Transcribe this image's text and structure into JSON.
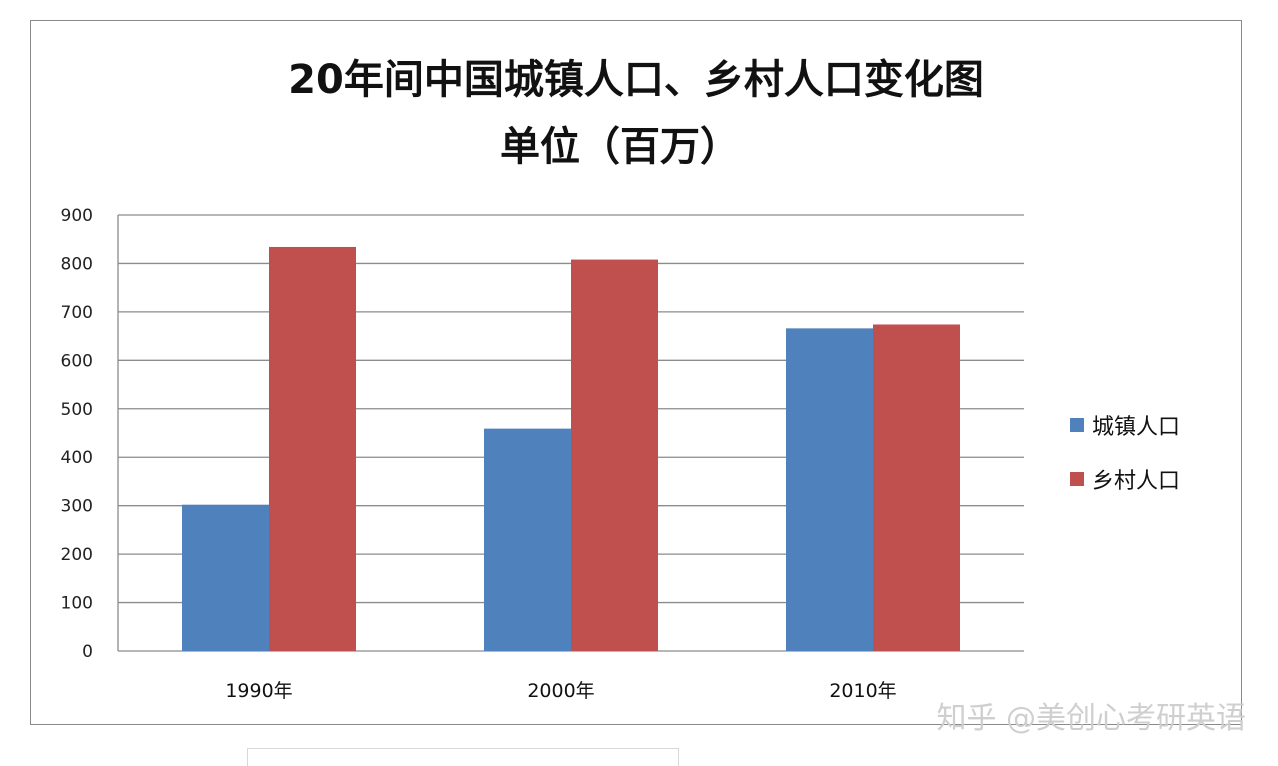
{
  "chart_data": {
    "type": "bar",
    "title": "20年间中国城镇人口、乡村人口变化图",
    "subtitle": "单位（百万）",
    "categories": [
      "1990年",
      "2000年",
      "2010年"
    ],
    "series": [
      {
        "name": "城镇人口",
        "values": [
          302,
          459,
          666
        ]
      },
      {
        "name": "乡村人口",
        "values": [
          834,
          808,
          674
        ]
      }
    ],
    "ylim": [
      0,
      900
    ],
    "yticks": [
      "0",
      "100",
      "200",
      "300",
      "400",
      "500",
      "600",
      "700",
      "800",
      "900"
    ],
    "grid": true,
    "legend": "right",
    "colors": {
      "城镇人口": "#4f81bd",
      "乡村人口": "#c0504d"
    }
  },
  "watermark": "知乎 @美创心考研英语"
}
